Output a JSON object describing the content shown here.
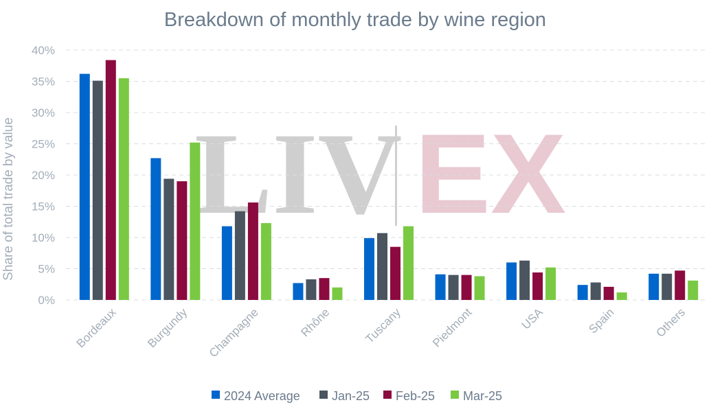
{
  "watermark": {
    "left": "LIV",
    "right": "EX"
  },
  "chart_data": {
    "type": "bar",
    "title": "Breakdown of monthly trade by wine region",
    "ylabel": "Share of total trade by value",
    "xlabel": "",
    "ylim": [
      0,
      40
    ],
    "yticks": [
      "0%",
      "5%",
      "10%",
      "15%",
      "20%",
      "25%",
      "30%",
      "35%",
      "40%"
    ],
    "ytick_values": [
      0,
      5,
      10,
      15,
      20,
      25,
      30,
      35,
      40
    ],
    "grid": true,
    "legend_position": "bottom",
    "categories": [
      "Bordeaux",
      "Burgundy",
      "Champagne",
      "Rhône",
      "Tuscany",
      "Piedmont",
      "USA",
      "Spain",
      "Others"
    ],
    "series": [
      {
        "name": "2024 Average",
        "color": "#0066cc",
        "values": [
          36.2,
          22.7,
          11.8,
          2.7,
          9.9,
          4.1,
          6.0,
          2.4,
          4.2
        ]
      },
      {
        "name": "Jan-25",
        "color": "#4a5560",
        "values": [
          35.1,
          19.4,
          14.2,
          3.3,
          10.7,
          4.0,
          6.3,
          2.8,
          4.2
        ]
      },
      {
        "name": "Feb-25",
        "color": "#8b0a3f",
        "values": [
          38.4,
          19.0,
          15.6,
          3.5,
          8.5,
          4.0,
          4.4,
          2.1,
          4.7
        ]
      },
      {
        "name": "Mar-25",
        "color": "#7ac943",
        "values": [
          35.5,
          25.2,
          12.3,
          2.0,
          11.8,
          3.8,
          5.2,
          1.2,
          3.1
        ]
      }
    ]
  }
}
